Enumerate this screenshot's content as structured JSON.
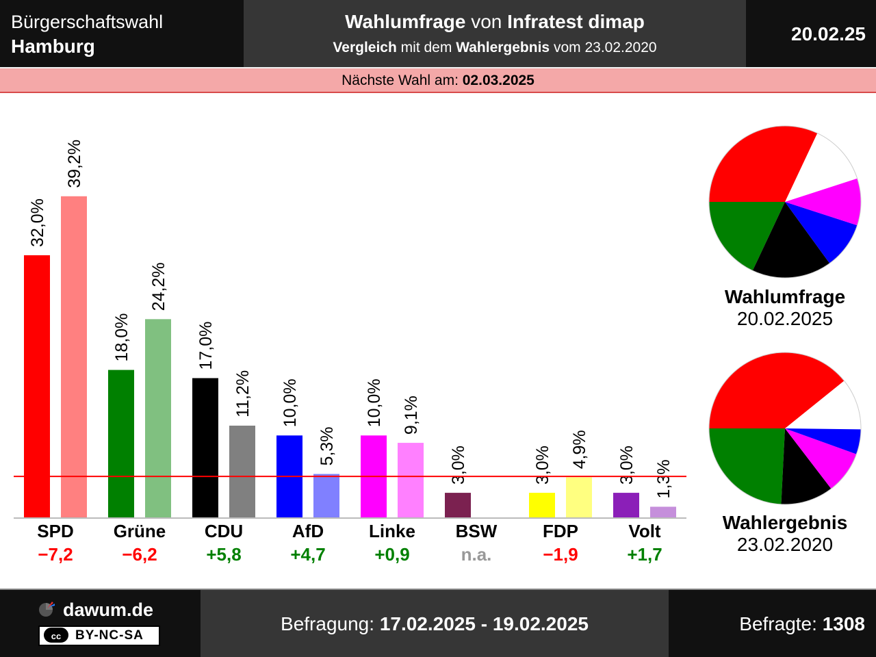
{
  "header": {
    "election": "Bürgerschaftswahl",
    "region": "Hamburg",
    "poll_word": "Wahlumfrage",
    "von": "von",
    "institute": "Infratest dimap",
    "compare_word": "Vergleich",
    "compare_mid": "mit dem",
    "compare_result": "Wahlergebnis",
    "compare_vom": "vom 23.02.2020",
    "date": "20.02.25"
  },
  "next_election": {
    "label": "Nächste Wahl am:",
    "date": "02.03.2025"
  },
  "pies": {
    "poll": {
      "title": "Wahlumfrage",
      "date": "20.02.2025"
    },
    "result": {
      "title": "Wahlergebnis",
      "date": "23.02.2020"
    }
  },
  "footer": {
    "brand": "dawum.de",
    "license_cc": "cc",
    "license_text": "BY-NC-SA",
    "survey_label": "Befragung:",
    "survey_range": "17.02.2025 - 19.02.2025",
    "respondents_label": "Befragte:",
    "respondents": "1308"
  },
  "colors": {
    "gain": "#008000",
    "loss": "#ff0000",
    "na": "#999999",
    "threshold": "#ff0000"
  },
  "chart_data": {
    "type": "bar",
    "categories": [
      "SPD",
      "Grüne",
      "CDU",
      "AfD",
      "Linke",
      "BSW",
      "FDP",
      "Volt"
    ],
    "series": [
      {
        "values": [
          32.0,
          18.0,
          17.0,
          10.0,
          10.0,
          3.0,
          3.0,
          3.0
        ],
        "labels": [
          "32,0%",
          "18,0%",
          "17,0%",
          "10,0%",
          "10,0%",
          "3,0%",
          "3,0%",
          "3,0%"
        ],
        "colors": [
          "#ff0000",
          "#008000",
          "#000000",
          "#0000ff",
          "#ff00ff",
          "#7b2150",
          "#ffff00",
          "#8b1fb8"
        ]
      },
      {
        "values": [
          39.2,
          24.2,
          11.2,
          5.3,
          9.1,
          null,
          4.9,
          1.3
        ],
        "labels": [
          "39,2%",
          "24,2%",
          "11,2%",
          "5,3%",
          "9,1%",
          "",
          "4,9%",
          "1,3%"
        ],
        "colors": [
          "#ff8080",
          "#80c080",
          "#808080",
          "#8080ff",
          "#ff80ff",
          "#bd90a8",
          "#ffff80",
          "#c58fdb"
        ]
      }
    ],
    "differences": [
      "−7,2",
      "−6,2",
      "+5,8",
      "+4,7",
      "+0,9",
      "n.a.",
      "−1,9",
      "+1,7"
    ],
    "difference_types": [
      "loss",
      "loss",
      "gain",
      "gain",
      "gain",
      "na",
      "loss",
      "gain"
    ],
    "threshold": 5,
    "ylim": [
      0,
      40
    ],
    "grid": false,
    "pie_poll": {
      "order": [
        "SPD",
        "Grüne",
        "CDU",
        "AfD",
        "Linke"
      ],
      "values": [
        32.0,
        18.0,
        17.0,
        10.0,
        10.0
      ],
      "colors": [
        "#ff0000",
        "#008000",
        "#000000",
        "#0000ff",
        "#ff00ff"
      ]
    },
    "pie_result": {
      "order": [
        "SPD",
        "Grüne",
        "CDU",
        "Linke",
        "AfD"
      ],
      "values": [
        39.2,
        24.2,
        11.2,
        9.1,
        5.3
      ],
      "colors": [
        "#ff0000",
        "#008000",
        "#000000",
        "#ff00ff",
        "#0000ff"
      ]
    }
  }
}
